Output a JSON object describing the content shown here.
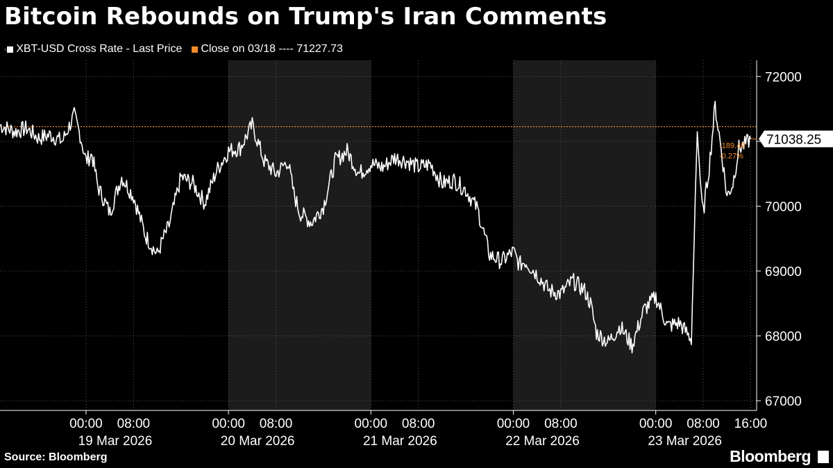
{
  "title": "Bitcoin Rebounds on Trump's Iran Comments",
  "legend": {
    "series_label": "XBT-USD Cross Rate - Last Price",
    "close_label": "Close on 03/18 ---- 71227.73",
    "series_color": "#ffffff",
    "close_color": "#f28c28"
  },
  "source": "Source: Bloomberg",
  "brand": "Bloomberg",
  "chart_data": {
    "type": "line",
    "title": "Bitcoin Rebounds on Trump's Iran Comments",
    "xlabel": "",
    "ylabel": "",
    "ylim": [
      66850,
      72250
    ],
    "y_ticks": [
      67000,
      68000,
      69000,
      70000,
      71000,
      72000
    ],
    "y_tick_labels": [
      "67000",
      "68000",
      "69000",
      "70000",
      "",
      "72000"
    ],
    "x_tick_labels": [
      {
        "time": "00:00",
        "date": "19 Mar 2026"
      },
      {
        "time": "08:00",
        "date": ""
      },
      {
        "time": "00:00",
        "date": "20 Mar 2026"
      },
      {
        "time": "08:00",
        "date": ""
      },
      {
        "time": "00:00",
        "date": "21 Mar 2026"
      },
      {
        "time": "08:00",
        "date": ""
      },
      {
        "time": "00:00",
        "date": "22 Mar 2026"
      },
      {
        "time": "08:00",
        "date": ""
      },
      {
        "time": "00:00",
        "date": "23 Mar 2026"
      },
      {
        "time": "08:00",
        "date": ""
      },
      {
        "time": "16:00",
        "date": ""
      }
    ],
    "x_range_hours": [
      -14.5,
      113
    ],
    "grid": true,
    "shaded_days": [
      "20 Mar 2026",
      "22 Mar 2026"
    ],
    "last_value": "71038.25",
    "change": "-189.48",
    "change_pct": "-0.27%",
    "reference_line": {
      "label": "Close on 03/18",
      "value": 71227.73
    },
    "series": [
      {
        "name": "XBT-USD Cross Rate - Last Price",
        "x_hours": [
          -14.5,
          -12,
          -10,
          -8,
          -6,
          -4,
          -2,
          -1,
          0,
          1,
          2,
          4,
          6,
          8,
          10,
          12,
          13,
          14,
          16,
          18,
          20,
          22,
          24,
          26,
          28,
          30,
          32,
          34,
          35,
          36,
          38,
          40,
          42,
          44,
          46,
          48,
          50,
          52,
          54,
          56,
          58,
          60,
          62,
          64,
          66,
          68,
          70,
          72,
          73,
          74,
          76,
          78,
          80,
          82,
          84,
          85,
          86,
          88,
          90,
          92,
          94,
          96,
          98,
          100,
          102,
          103,
          103.5,
          104,
          105,
          106,
          107,
          108,
          109,
          110,
          111,
          112
        ],
        "y": [
          71250,
          71150,
          71200,
          71050,
          71100,
          71000,
          71400,
          71100,
          70700,
          70800,
          70300,
          69900,
          70450,
          70150,
          69550,
          69250,
          69500,
          69700,
          70450,
          70350,
          70050,
          70550,
          70850,
          70900,
          71250,
          70700,
          70500,
          70700,
          70200,
          69900,
          69750,
          70000,
          70700,
          70850,
          70500,
          70650,
          70600,
          70750,
          70700,
          70600,
          70650,
          70350,
          70400,
          70250,
          69950,
          69250,
          69150,
          69300,
          69100,
          69150,
          68950,
          68700,
          68650,
          68850,
          68700,
          68500,
          68050,
          67900,
          68150,
          67850,
          68400,
          68600,
          68150,
          68200,
          67950,
          71150,
          70400,
          69900,
          70600,
          71550,
          70900,
          70150,
          70350,
          70900,
          70950,
          71038.25
        ]
      }
    ]
  }
}
